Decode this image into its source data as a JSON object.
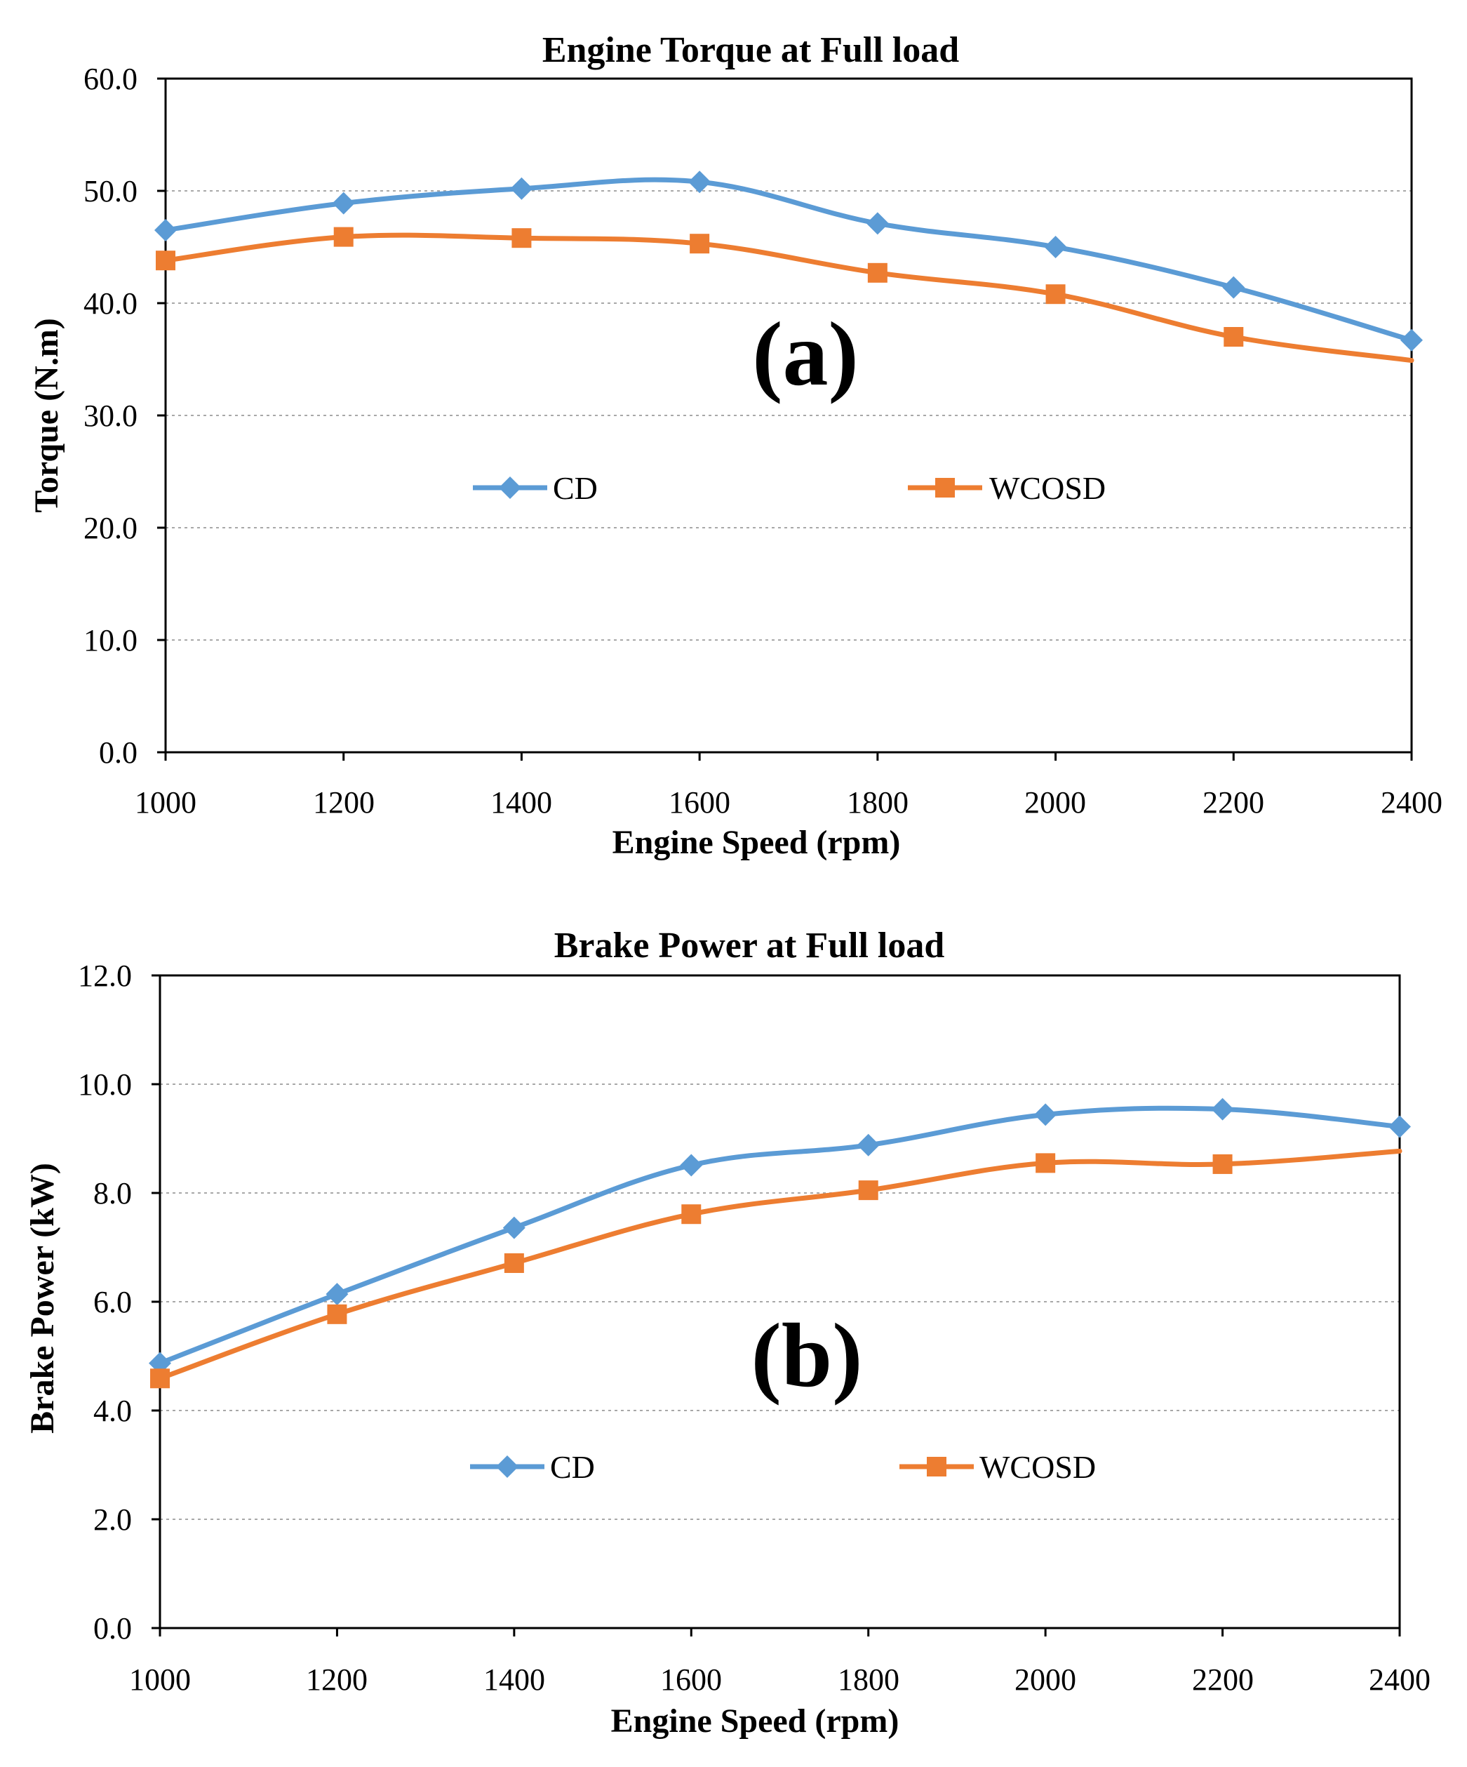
{
  "colors": {
    "cd": "#5B9BD5",
    "wcosd": "#ED7D31"
  },
  "chart_data": [
    {
      "type": "line",
      "title": "Engine Torque at Full load",
      "xlabel": "Engine Speed (rpm)",
      "ylabel": "Torque (N.m)",
      "panel_label": "(a)",
      "categories": [
        "1000",
        "1200",
        "1400",
        "1600",
        "1800",
        "2000",
        "2200",
        "2400"
      ],
      "x": [
        1000,
        1200,
        1400,
        1600,
        1800,
        2000,
        2200,
        2400
      ],
      "xlim": [
        1000,
        2400
      ],
      "ylim": [
        0,
        60
      ],
      "yticks": [
        0,
        10,
        20,
        30,
        40,
        50,
        60
      ],
      "ytick_labels": [
        "0.0",
        "10.0",
        "20.0",
        "30.0",
        "40.0",
        "50.0",
        "60.0"
      ],
      "grid": true,
      "legend": "center",
      "series": [
        {
          "name": "CD",
          "marker": "diamond",
          "color": "#5B9BD5",
          "values": [
            46.5,
            48.9,
            50.2,
            50.8,
            47.1,
            45.0,
            41.4,
            36.7
          ]
        },
        {
          "name": "WCOSD",
          "marker": "square",
          "color": "#ED7D31",
          "values": [
            43.8,
            45.9,
            45.8,
            45.3,
            42.7,
            40.8,
            37.0,
            34.9
          ]
        }
      ]
    },
    {
      "type": "line",
      "title": "Brake Power at Full load",
      "xlabel": "Engine Speed (rpm)",
      "ylabel": "Brake Power (kW)",
      "panel_label": "(b)",
      "categories": [
        "1000",
        "1200",
        "1400",
        "1600",
        "1800",
        "2000",
        "2200",
        "2400"
      ],
      "x": [
        1000,
        1200,
        1400,
        1600,
        1800,
        2000,
        2200,
        2400
      ],
      "xlim": [
        1000,
        2400
      ],
      "ylim": [
        0,
        12
      ],
      "yticks": [
        0,
        2,
        4,
        6,
        8,
        10,
        12
      ],
      "ytick_labels": [
        "0.0",
        "2.0",
        "4.0",
        "6.0",
        "8.0",
        "10.0",
        "12.0"
      ],
      "grid": true,
      "legend": "lower-center",
      "series": [
        {
          "name": "CD",
          "marker": "diamond",
          "color": "#5B9BD5",
          "values": [
            4.87,
            6.14,
            7.36,
            8.51,
            8.88,
            9.44,
            9.54,
            9.22
          ]
        },
        {
          "name": "WCOSD",
          "marker": "square",
          "color": "#ED7D31",
          "values": [
            4.59,
            5.77,
            6.71,
            7.61,
            8.05,
            8.55,
            8.53,
            8.77
          ]
        }
      ]
    }
  ]
}
